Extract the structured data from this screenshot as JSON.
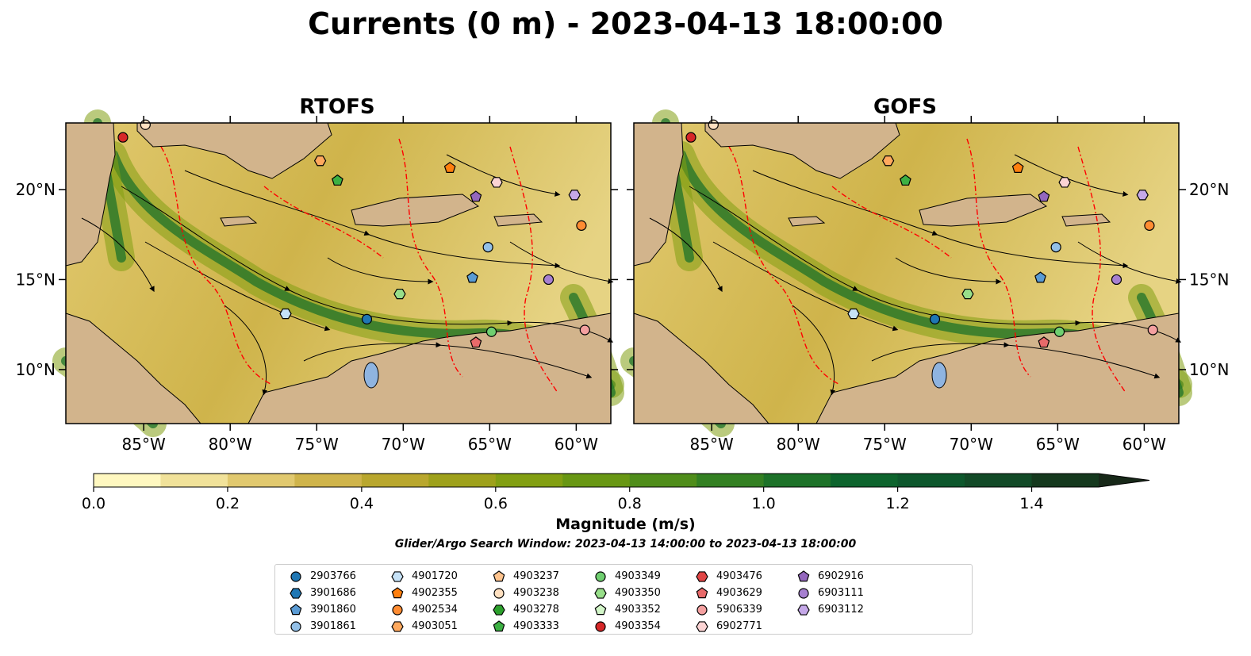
{
  "title": "Currents (0 m) - 2023-04-13 18:00:00",
  "panels": [
    {
      "title": "RTOFS"
    },
    {
      "title": "GOFS"
    }
  ],
  "lon_ticks": [
    "85°W",
    "80°W",
    "75°W",
    "70°W",
    "65°W",
    "60°W"
  ],
  "lat_ticks": [
    "20°N",
    "15°N",
    "10°N"
  ],
  "colorbar": {
    "label": "Magnitude (m/s)",
    "ticks": [
      "0.0",
      "0.2",
      "0.4",
      "0.6",
      "0.8",
      "1.0",
      "1.2",
      "1.4"
    ],
    "min": 0.0,
    "max": 1.5,
    "extend": "max",
    "colors": [
      "#fff8c0",
      "#f1e29a",
      "#e1c96f",
      "#cfb44b",
      "#b9a72e",
      "#9ea11b",
      "#829f12",
      "#689713",
      "#4f8d1a",
      "#338022",
      "#1d7229",
      "#0d642d",
      "#0d572c",
      "#124a27",
      "#15391e",
      "#172818"
    ]
  },
  "search_window": "Glider/Argo Search Window: 2023-04-13 14:00:00 to 2023-04-13 18:00:00",
  "map": {
    "extent_lon": [
      -89.5,
      -58.0
    ],
    "extent_lat": [
      7.0,
      23.7
    ],
    "land_color": "#d2b48c",
    "contour_color": "#ff0000"
  },
  "floats": [
    {
      "id": "2903766",
      "marker": "circle",
      "color": "#1f77b4",
      "lon": -72.1,
      "lat": 12.8
    },
    {
      "id": "3901686",
      "marker": "hexagon",
      "color": "#1f77b4",
      "lon": null,
      "lat": null
    },
    {
      "id": "3901860",
      "marker": "pentagon",
      "color": "#5a9bd4",
      "lon": -66.0,
      "lat": 15.1
    },
    {
      "id": "3901861",
      "marker": "circle",
      "color": "#93c0e8",
      "lon": -65.1,
      "lat": 16.8
    },
    {
      "id": "4901720",
      "marker": "hexagon",
      "color": "#c6e2f7",
      "lon": -76.8,
      "lat": 13.1
    },
    {
      "id": "4902355",
      "marker": "pentagon",
      "color": "#ff7f0e",
      "lon": -67.3,
      "lat": 21.2
    },
    {
      "id": "4902534",
      "marker": "circle",
      "color": "#ff8c32",
      "lon": -59.7,
      "lat": 18.0
    },
    {
      "id": "4903051",
      "marker": "hexagon",
      "color": "#ffa95e",
      "lon": -74.8,
      "lat": 21.6
    },
    {
      "id": "4903237",
      "marker": "pentagon",
      "color": "#ffc48e",
      "lon": null,
      "lat": null
    },
    {
      "id": "4903238",
      "marker": "circle",
      "color": "#ffe0c0",
      "lon": -84.9,
      "lat": 23.6
    },
    {
      "id": "4903278",
      "marker": "hexagon",
      "color": "#2ca02c",
      "lon": null,
      "lat": null
    },
    {
      "id": "4903333",
      "marker": "pentagon",
      "color": "#3cb043",
      "lon": -73.8,
      "lat": 20.5
    },
    {
      "id": "4903349",
      "marker": "circle",
      "color": "#6fcf70",
      "lon": -64.9,
      "lat": 12.1
    },
    {
      "id": "4903350",
      "marker": "hexagon",
      "color": "#98df8a",
      "lon": -70.2,
      "lat": 14.2
    },
    {
      "id": "4903352",
      "marker": "pentagon",
      "color": "#d2f5c8",
      "lon": null,
      "lat": null
    },
    {
      "id": "4903354",
      "marker": "circle",
      "color": "#d62728",
      "lon": -86.2,
      "lat": 22.9
    },
    {
      "id": "4903476",
      "marker": "hexagon",
      "color": "#e04545",
      "lon": null,
      "lat": null
    },
    {
      "id": "4903629",
      "marker": "pentagon",
      "color": "#e86a6a",
      "lon": -65.8,
      "lat": 11.5
    },
    {
      "id": "5906339",
      "marker": "circle",
      "color": "#f4a0a0",
      "lon": -59.5,
      "lat": 12.2
    },
    {
      "id": "6902771",
      "marker": "hexagon",
      "color": "#fbd3d3",
      "lon": -64.6,
      "lat": 20.4
    },
    {
      "id": "6902916",
      "marker": "pentagon",
      "color": "#9467bd",
      "lon": -65.8,
      "lat": 19.6
    },
    {
      "id": "6903111",
      "marker": "circle",
      "color": "#a67fd0",
      "lon": -61.6,
      "lat": 15.0
    },
    {
      "id": "6903112",
      "marker": "hexagon",
      "color": "#c5a8e8",
      "lon": -60.1,
      "lat": 19.7
    }
  ]
}
